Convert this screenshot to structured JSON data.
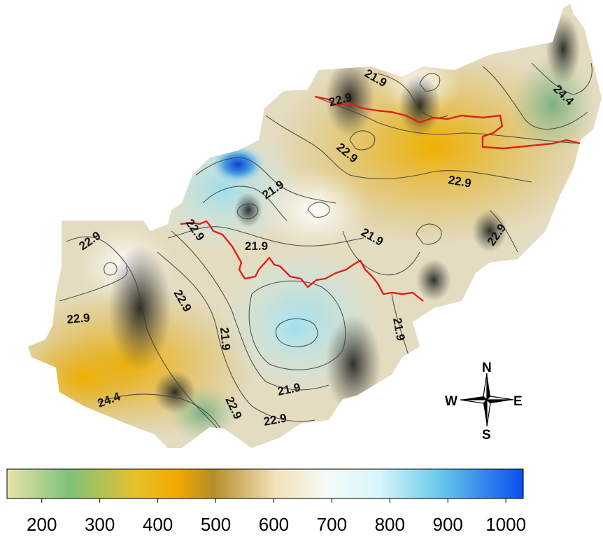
{
  "map": {
    "contour_labels": [
      "22.9",
      "21.9",
      "24.4"
    ],
    "colors": {
      "boundary": "#e0201a",
      "contour_line": "#3a3a3a"
    }
  },
  "compass": {
    "north": "N",
    "south": "S",
    "east": "E",
    "west": "W"
  },
  "legend": {
    "ticks": [
      "200",
      "300",
      "400",
      "500",
      "600",
      "700",
      "800",
      "900",
      "1000"
    ],
    "range": [
      140,
      1030
    ],
    "gradient": [
      {
        "at": 0.0,
        "color": "#e8e4a8"
      },
      {
        "at": 0.12,
        "color": "#7ec27a"
      },
      {
        "at": 0.25,
        "color": "#e6c12a"
      },
      {
        "at": 0.33,
        "color": "#f2a800"
      },
      {
        "at": 0.4,
        "color": "#b58d2a"
      },
      {
        "at": 0.52,
        "color": "#f2e2b8"
      },
      {
        "at": 0.62,
        "color": "#f4fbf8"
      },
      {
        "at": 0.72,
        "color": "#d8f6fa"
      },
      {
        "at": 0.84,
        "color": "#66c8ea"
      },
      {
        "at": 1.0,
        "color": "#0a4df0"
      }
    ]
  }
}
